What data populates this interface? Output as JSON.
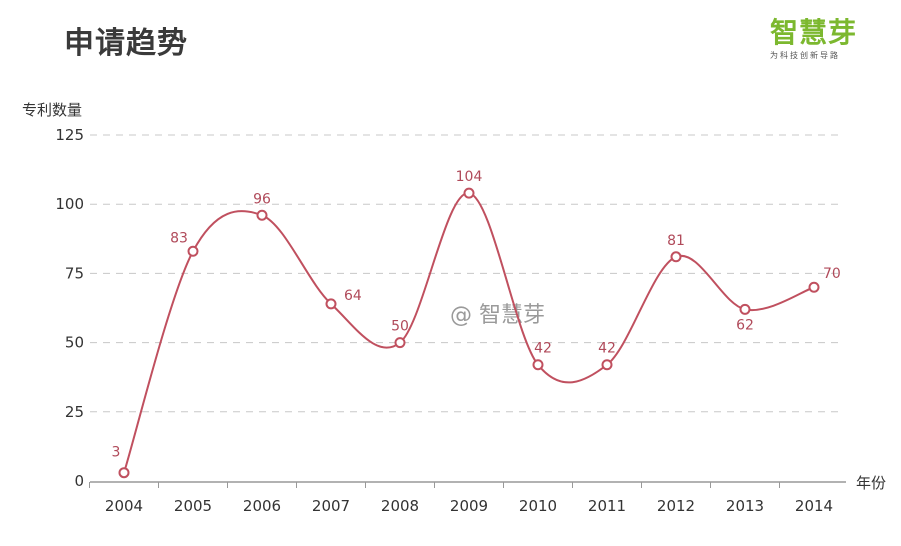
{
  "title": "申请趋势",
  "logo": {
    "name": "智慧芽",
    "slogan": "为科技创新导路"
  },
  "watermark": "@ 智慧芽",
  "colors": {
    "line": "#c0505f",
    "grid": "#c8c8c8",
    "logo": "#7cb82f"
  },
  "chart_data": {
    "type": "line",
    "smooth": true,
    "ylabel": "专利数量",
    "xlabel": "年份",
    "ylim": [
      0,
      125
    ],
    "yticks": [
      0,
      25,
      50,
      75,
      100,
      125
    ],
    "grid": true,
    "grid_style": "dashed-horizontal",
    "categories": [
      "2004",
      "2005",
      "2006",
      "2007",
      "2008",
      "2009",
      "2010",
      "2011",
      "2012",
      "2013",
      "2014"
    ],
    "series": [
      {
        "values": [
          3,
          83,
          96,
          64,
          50,
          104,
          42,
          42,
          81,
          62,
          70
        ]
      }
    ]
  }
}
